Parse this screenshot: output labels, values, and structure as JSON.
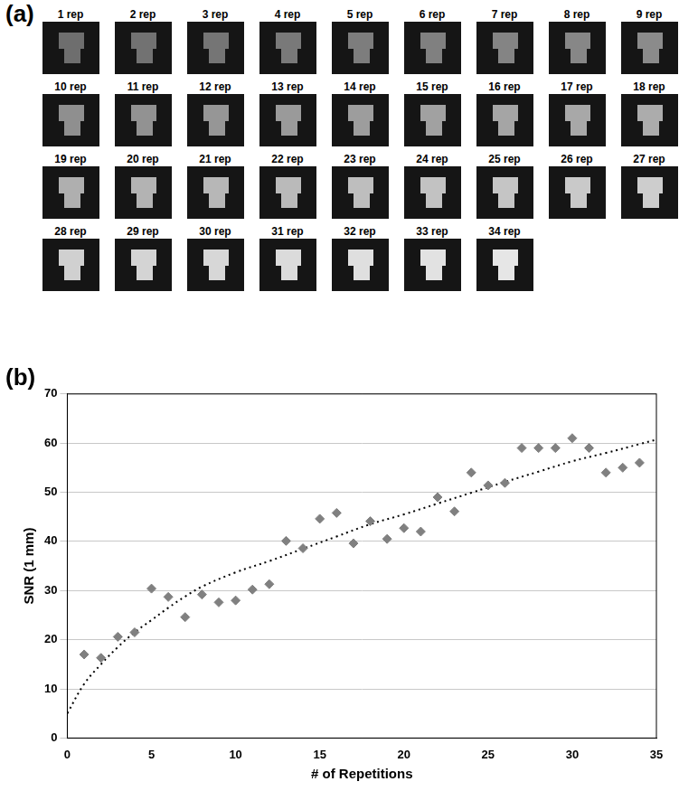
{
  "figure": {
    "panel_labels": [
      "(a)",
      "(b)"
    ],
    "image_titles": [
      "1 rep",
      "2 rep",
      "3 rep",
      "4 rep",
      "5 rep",
      "6 rep",
      "7 rep",
      "8 rep",
      "9 rep",
      "10 rep",
      "11 rep",
      "12 rep",
      "13 rep",
      "14 rep",
      "15 rep",
      "16 rep",
      "17 rep",
      "18 rep",
      "19 rep",
      "20 rep",
      "21 rep",
      "22 rep",
      "23 rep",
      "24 rep",
      "25 rep",
      "26 rep",
      "27 rep",
      "28 rep",
      "29 rep",
      "30 rep",
      "31 rep",
      "32 rep",
      "33 rep",
      "34 rep"
    ]
  },
  "chart_data": {
    "type": "scatter",
    "x_label": "# of Repetitions",
    "y_label": "SNR (1 mm)",
    "series": [
      {
        "type": "scatter",
        "color": "#808080",
        "marker": "diamond",
        "x": [
          1,
          2,
          3,
          4,
          5,
          6,
          7,
          8,
          9,
          10,
          11,
          12,
          13,
          14,
          15,
          16,
          17,
          18,
          19,
          20,
          21,
          22,
          23,
          24,
          25,
          26,
          27,
          28,
          29,
          30,
          31,
          32,
          33,
          34
        ],
        "values": [
          17,
          16.3,
          20.6,
          21.5,
          30.4,
          28.7,
          24.6,
          29.2,
          27.6,
          28,
          30.2,
          31.3,
          40.1,
          38.6,
          44.6,
          45.8,
          39.6,
          44.1,
          40.5,
          42.7,
          42,
          49,
          46.1,
          54,
          51.4,
          51.9,
          59,
          59,
          59,
          61,
          59,
          54,
          55,
          56
        ]
      },
      {
        "type": "line",
        "color": "#000000",
        "line_style": "dotted",
        "x": [
          0,
          1,
          2,
          3,
          4,
          5,
          6,
          7,
          8,
          10,
          12,
          14,
          16,
          18,
          20,
          22,
          24,
          26,
          28,
          30,
          32,
          34,
          35
        ],
        "values": [
          5,
          11,
          15,
          18.5,
          21.5,
          24,
          26.5,
          28.8,
          30.8,
          33.7,
          36,
          38.5,
          41,
          43.5,
          45.5,
          47.7,
          49.9,
          52.1,
          54.2,
          56.3,
          58,
          59.8,
          60.7
        ]
      }
    ],
    "xlim": [
      0,
      35
    ],
    "xticks": [
      0,
      5,
      10,
      15,
      20,
      25,
      30,
      35
    ],
    "ylim": [
      0,
      70
    ],
    "yticks": [
      0,
      10,
      20,
      30,
      40,
      50,
      60,
      70
    ],
    "grid": "y"
  }
}
